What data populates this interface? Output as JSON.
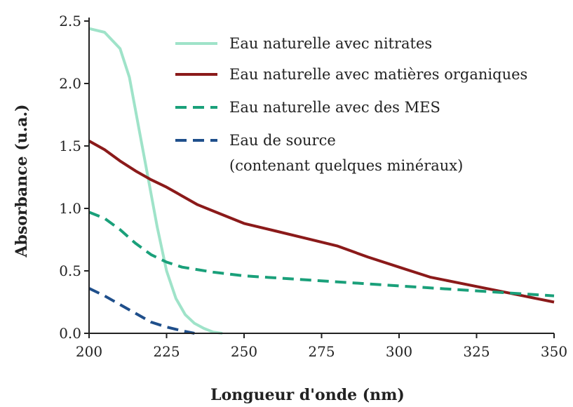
{
  "chart_data": {
    "type": "line",
    "xlabel": "Longueur d'onde (nm)",
    "ylabel": "Absorbance (u.a.)",
    "xlim": [
      200,
      350
    ],
    "ylim": [
      0,
      2.5
    ],
    "x_ticks": [
      "200",
      "225",
      "250",
      "275",
      "300",
      "325",
      "350"
    ],
    "y_ticks": [
      "0.0",
      "0.5",
      "1.0",
      "1.5",
      "2.0",
      "2.5"
    ],
    "grid": false,
    "legend_position": "top-right",
    "series": [
      {
        "name": "Eau naturelle avec nitrates",
        "color": "#9fe3c9",
        "style": "solid",
        "points": [
          [
            200,
            2.44
          ],
          [
            205,
            2.41
          ],
          [
            210,
            2.28
          ],
          [
            213,
            2.05
          ],
          [
            216,
            1.65
          ],
          [
            219,
            1.25
          ],
          [
            222,
            0.85
          ],
          [
            225,
            0.5
          ],
          [
            228,
            0.28
          ],
          [
            231,
            0.15
          ],
          [
            234,
            0.08
          ],
          [
            237,
            0.04
          ],
          [
            240,
            0.01
          ],
          [
            243,
            0.0
          ]
        ]
      },
      {
        "name": "Eau naturelle avec matières organiques",
        "color": "#8b1a1a",
        "style": "solid",
        "points": [
          [
            200,
            1.54
          ],
          [
            205,
            1.47
          ],
          [
            210,
            1.38
          ],
          [
            215,
            1.3
          ],
          [
            220,
            1.23
          ],
          [
            225,
            1.17
          ],
          [
            230,
            1.1
          ],
          [
            235,
            1.03
          ],
          [
            240,
            0.98
          ],
          [
            250,
            0.88
          ],
          [
            260,
            0.82
          ],
          [
            270,
            0.76
          ],
          [
            280,
            0.7
          ],
          [
            290,
            0.61
          ],
          [
            300,
            0.53
          ],
          [
            310,
            0.45
          ],
          [
            320,
            0.4
          ],
          [
            330,
            0.35
          ],
          [
            340,
            0.3
          ],
          [
            350,
            0.25
          ]
        ]
      },
      {
        "name": "Eau naturelle avec des MES",
        "color": "#1aa07a",
        "style": "dashed",
        "points": [
          [
            200,
            0.97
          ],
          [
            205,
            0.92
          ],
          [
            210,
            0.83
          ],
          [
            215,
            0.72
          ],
          [
            220,
            0.63
          ],
          [
            225,
            0.57
          ],
          [
            230,
            0.53
          ],
          [
            240,
            0.49
          ],
          [
            250,
            0.46
          ],
          [
            275,
            0.42
          ],
          [
            300,
            0.38
          ],
          [
            325,
            0.34
          ],
          [
            350,
            0.3
          ]
        ]
      },
      {
        "name": "Eau de source",
        "name_line2": "(contenant quelques minéraux)",
        "color": "#1f4f8b",
        "style": "dashed",
        "points": [
          [
            200,
            0.36
          ],
          [
            205,
            0.3
          ],
          [
            210,
            0.23
          ],
          [
            215,
            0.16
          ],
          [
            220,
            0.09
          ],
          [
            225,
            0.05
          ],
          [
            230,
            0.02
          ],
          [
            234,
            0.0
          ]
        ]
      }
    ]
  }
}
